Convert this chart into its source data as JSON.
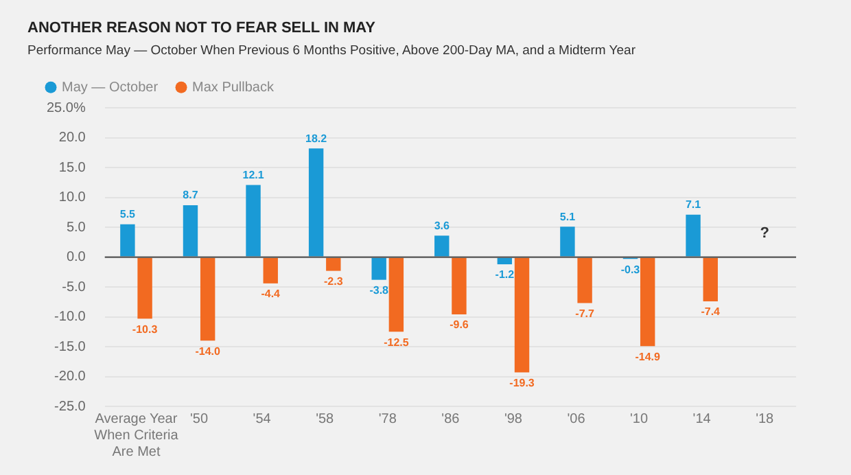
{
  "chart_data": {
    "type": "bar",
    "title": "ANOTHER REASON NOT TO FEAR SELL IN MAY",
    "subtitle": "Performance May — October When Previous 6 Months Positive, Above 200-Day MA, and a Midterm Year",
    "categories": [
      "Average Year When Criteria Are Met",
      "'50",
      "'54",
      "'58",
      "'78",
      "'86",
      "'98",
      "'06",
      "'10",
      "'14",
      "'18"
    ],
    "series": [
      {
        "name": "May — October",
        "color": "#1a9ad6",
        "values": [
          5.5,
          8.7,
          12.1,
          18.2,
          -3.8,
          3.6,
          -1.2,
          5.1,
          -0.3,
          7.1,
          null
        ],
        "value_labels": [
          "5.5",
          "8.7",
          "12.1",
          "18.2",
          "-3.8",
          "3.6",
          "-1.2",
          "5.1",
          "-0.3",
          "7.1",
          null
        ]
      },
      {
        "name": "Max Pullback",
        "color": "#f26a21",
        "values": [
          -10.3,
          -14.0,
          -4.4,
          -2.3,
          -12.5,
          -9.6,
          -19.3,
          -7.7,
          -14.9,
          -7.4,
          null
        ],
        "value_labels": [
          "-10.3",
          "-14.0",
          "-4.4",
          "-2.3",
          "-12.5",
          "-9.6",
          "-19.3",
          "-7.7",
          "-14.9",
          "-7.4",
          null
        ]
      }
    ],
    "ylim": [
      -25,
      25
    ],
    "yticks": [
      {
        "value": -25,
        "label": "-25.0"
      },
      {
        "value": -20,
        "label": "-20.0"
      },
      {
        "value": -15,
        "label": "-15.0"
      },
      {
        "value": -10,
        "label": "-10.0"
      },
      {
        "value": -5,
        "label": "-5.0"
      },
      {
        "value": 0,
        "label": "0.0"
      },
      {
        "value": 5,
        "label": "5.0"
      },
      {
        "value": 10,
        "label": "10.0"
      },
      {
        "value": 15,
        "label": "15.0"
      },
      {
        "value": 20,
        "label": "20.0"
      },
      {
        "value": 25,
        "label": "25.0%"
      }
    ],
    "grid": "y",
    "legend": "top left",
    "ref_lines": [
      {
        "axis": "y",
        "value": 0,
        "color": "#555555"
      }
    ],
    "annotations": [
      "?"
    ]
  }
}
